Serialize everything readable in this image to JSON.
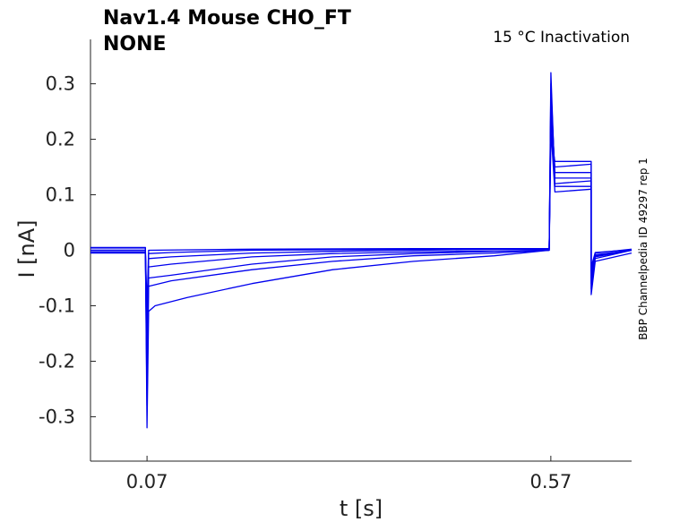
{
  "chart_data": {
    "type": "line",
    "title_lines": [
      "Nav1.4  Mouse  CHO_FT",
      "NONE"
    ],
    "annotation": "15 °C  Inactivation",
    "side_note": "BBP Channelpedia ID 49297 rep 1",
    "xlabel": "t [s]",
    "ylabel": "I [nA]",
    "xlim": [
      0.0,
      0.67
    ],
    "ylim": [
      -0.38,
      0.38
    ],
    "x_ticks": [
      0.07,
      0.57
    ],
    "x_tick_labels": [
      "0.07",
      "0.57"
    ],
    "y_ticks": [
      -0.3,
      -0.2,
      -0.1,
      0,
      0.1,
      0.2,
      0.3
    ],
    "y_tick_labels": [
      "-0.3",
      "-0.2",
      "-0.1",
      "0",
      "0.1",
      "0.2",
      "0.3"
    ],
    "grid": false,
    "line_color": "#0000ee",
    "series": [
      {
        "points": [
          [
            0.0,
            0.0
          ],
          [
            0.068,
            0.0
          ],
          [
            0.07,
            -0.32
          ],
          [
            0.072,
            -0.11
          ],
          [
            0.08,
            -0.1
          ],
          [
            0.12,
            -0.085
          ],
          [
            0.2,
            -0.06
          ],
          [
            0.3,
            -0.035
          ],
          [
            0.4,
            -0.02
          ],
          [
            0.5,
            -0.01
          ],
          [
            0.568,
            0.0
          ],
          [
            0.57,
            0.32
          ],
          [
            0.575,
            0.12
          ],
          [
            0.62,
            0.125
          ],
          [
            0.62,
            -0.08
          ],
          [
            0.625,
            -0.02
          ],
          [
            0.67,
            -0.005
          ]
        ]
      },
      {
        "points": [
          [
            0.0,
            0.0
          ],
          [
            0.068,
            0.0
          ],
          [
            0.07,
            -0.28
          ],
          [
            0.072,
            -0.065
          ],
          [
            0.1,
            -0.055
          ],
          [
            0.2,
            -0.035
          ],
          [
            0.3,
            -0.02
          ],
          [
            0.4,
            -0.01
          ],
          [
            0.5,
            -0.005
          ],
          [
            0.568,
            0.0
          ],
          [
            0.57,
            0.3
          ],
          [
            0.575,
            0.13
          ],
          [
            0.62,
            0.13
          ],
          [
            0.62,
            -0.07
          ],
          [
            0.625,
            -0.015
          ],
          [
            0.67,
            0.0
          ]
        ]
      },
      {
        "points": [
          [
            0.0,
            0.005
          ],
          [
            0.068,
            0.005
          ],
          [
            0.07,
            -0.25
          ],
          [
            0.072,
            -0.05
          ],
          [
            0.1,
            -0.045
          ],
          [
            0.2,
            -0.025
          ],
          [
            0.3,
            -0.012
          ],
          [
            0.4,
            -0.006
          ],
          [
            0.5,
            -0.002
          ],
          [
            0.568,
            0.0
          ],
          [
            0.57,
            0.28
          ],
          [
            0.575,
            0.14
          ],
          [
            0.62,
            0.14
          ],
          [
            0.62,
            -0.06
          ],
          [
            0.625,
            -0.01
          ],
          [
            0.67,
            0.0
          ]
        ]
      },
      {
        "points": [
          [
            0.0,
            -0.005
          ],
          [
            0.068,
            -0.005
          ],
          [
            0.07,
            -0.22
          ],
          [
            0.072,
            -0.03
          ],
          [
            0.1,
            -0.025
          ],
          [
            0.2,
            -0.012
          ],
          [
            0.3,
            -0.006
          ],
          [
            0.4,
            -0.003
          ],
          [
            0.568,
            0.0
          ],
          [
            0.57,
            0.26
          ],
          [
            0.575,
            0.115
          ],
          [
            0.62,
            0.115
          ],
          [
            0.62,
            -0.05
          ],
          [
            0.625,
            -0.012
          ],
          [
            0.67,
            0.0
          ]
        ]
      },
      {
        "points": [
          [
            0.0,
            0.0
          ],
          [
            0.068,
            0.0
          ],
          [
            0.07,
            -0.2
          ],
          [
            0.072,
            -0.015
          ],
          [
            0.1,
            -0.012
          ],
          [
            0.2,
            -0.005
          ],
          [
            0.3,
            -0.002
          ],
          [
            0.4,
            0.0
          ],
          [
            0.568,
            0.003
          ],
          [
            0.57,
            0.24
          ],
          [
            0.575,
            0.15
          ],
          [
            0.62,
            0.155
          ],
          [
            0.62,
            -0.04
          ],
          [
            0.625,
            -0.008
          ],
          [
            0.67,
            0.0
          ]
        ]
      },
      {
        "points": [
          [
            0.0,
            0.004
          ],
          [
            0.068,
            0.004
          ],
          [
            0.07,
            -0.15
          ],
          [
            0.072,
            -0.006
          ],
          [
            0.1,
            -0.004
          ],
          [
            0.2,
            0.0
          ],
          [
            0.4,
            0.002
          ],
          [
            0.568,
            0.002
          ],
          [
            0.57,
            0.22
          ],
          [
            0.575,
            0.105
          ],
          [
            0.62,
            0.11
          ],
          [
            0.62,
            -0.035
          ],
          [
            0.625,
            -0.005
          ],
          [
            0.67,
            0.002
          ]
        ]
      },
      {
        "points": [
          [
            0.0,
            -0.003
          ],
          [
            0.068,
            -0.003
          ],
          [
            0.07,
            -0.1
          ],
          [
            0.072,
            0.0
          ],
          [
            0.2,
            0.002
          ],
          [
            0.4,
            0.003
          ],
          [
            0.568,
            0.003
          ],
          [
            0.57,
            0.2
          ],
          [
            0.575,
            0.16
          ],
          [
            0.62,
            0.16
          ],
          [
            0.62,
            -0.03
          ],
          [
            0.625,
            -0.004
          ],
          [
            0.67,
            0.001
          ]
        ]
      }
    ]
  }
}
